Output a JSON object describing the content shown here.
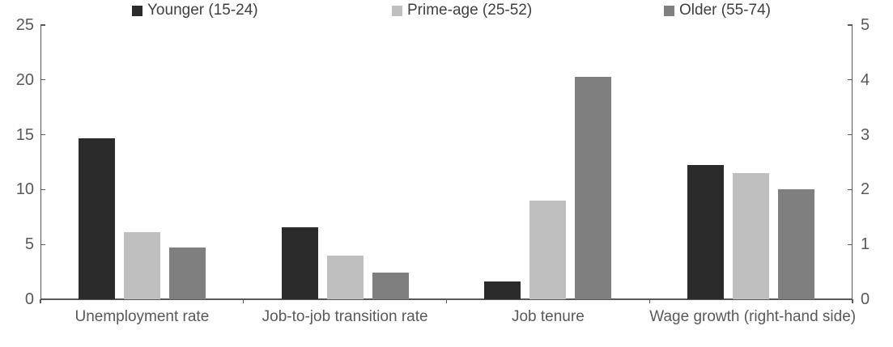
{
  "chart_data": {
    "type": "bar",
    "title": "",
    "categories": [
      "Unemployment rate",
      "Job-to-job transition rate",
      "Job tenure",
      "Wage growth (right-hand side)"
    ],
    "series": [
      {
        "name": "Younger (15-24)",
        "color": "#2b2b2b",
        "values": [
          14.7,
          6.6,
          1.6,
          2.45
        ]
      },
      {
        "name": "Prime-age (25-52)",
        "color": "#bfbfbf",
        "values": [
          6.1,
          4.0,
          9.0,
          2.3
        ]
      },
      {
        "name": "Older (55-74)",
        "color": "#7f7f7f",
        "values": [
          4.7,
          2.4,
          20.3,
          2.0
        ]
      }
    ],
    "right_hand_category_indices": [
      3
    ],
    "left_axis": {
      "min": 0,
      "max": 25,
      "ticks": [
        "0",
        "5",
        "10",
        "15",
        "20",
        "25"
      ]
    },
    "right_axis": {
      "min": 0,
      "max": 5,
      "ticks": [
        "0",
        "1",
        "2",
        "3",
        "4",
        "5"
      ]
    },
    "legend_position": "top",
    "grid": false
  },
  "colors": {
    "background": "#ffffff",
    "axis_line": "#595959",
    "tick_label": "#595959",
    "category_label": "#595959",
    "legend_text": "#3f3f3f"
  }
}
